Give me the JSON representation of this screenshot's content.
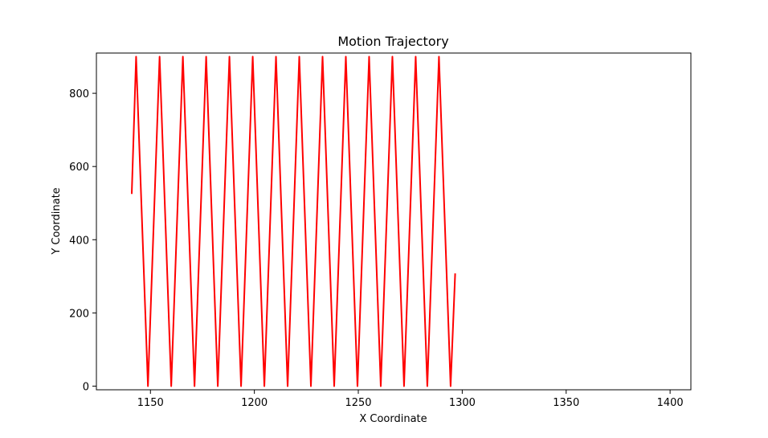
{
  "chart_data": {
    "type": "line",
    "title": "Motion Trajectory",
    "xlabel": "X Coordinate",
    "ylabel": "Y Coordinate",
    "xlim": [
      1124,
      1410
    ],
    "ylim": [
      -10,
      910
    ],
    "xticks": [
      1150,
      1200,
      1250,
      1300,
      1350,
      1400
    ],
    "yticks": [
      0,
      200,
      400,
      600,
      800
    ],
    "grid": false,
    "series": [
      {
        "color": "#ff0000",
        "x": [
          1141.0,
          1143.1,
          1148.8,
          1154.4,
          1160.0,
          1165.6,
          1171.2,
          1176.8,
          1182.4,
          1188.0,
          1193.6,
          1199.2,
          1204.8,
          1210.4,
          1216.0,
          1221.6,
          1227.2,
          1232.8,
          1238.4,
          1244.0,
          1249.6,
          1255.2,
          1260.8,
          1266.4,
          1272.0,
          1277.6,
          1283.2,
          1288.8,
          1294.4,
          1296.6
        ],
        "y": [
          525,
          900,
          0,
          900,
          0,
          900,
          0,
          900,
          0,
          900,
          0,
          900,
          0,
          900,
          0,
          900,
          0,
          900,
          0,
          900,
          0,
          900,
          0,
          900,
          0,
          900,
          0,
          900,
          0,
          308
        ]
      }
    ]
  }
}
